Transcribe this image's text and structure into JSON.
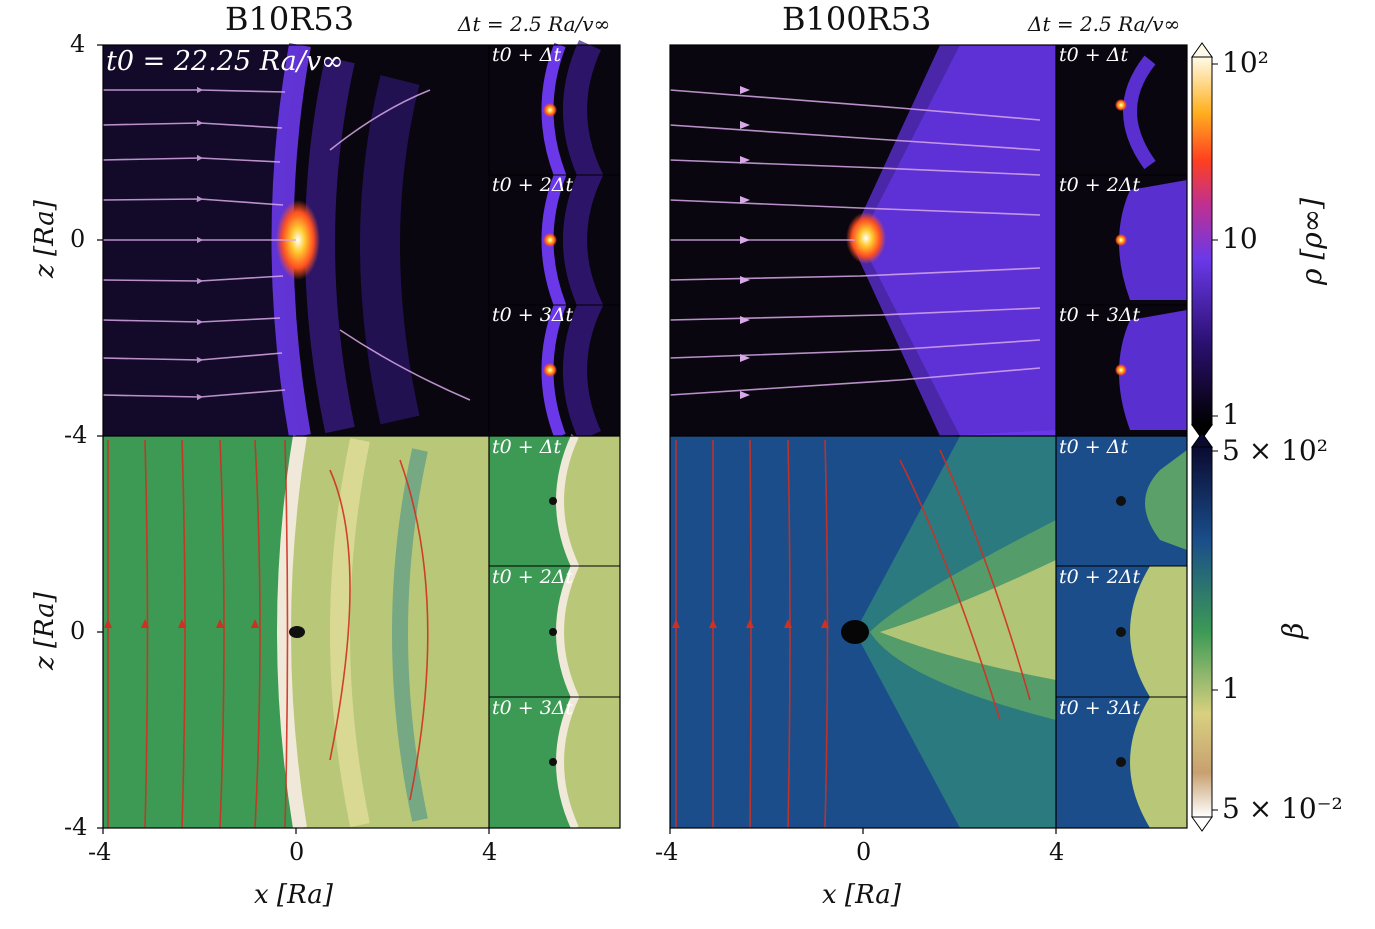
{
  "figure": {
    "panels": [
      {
        "title": "B10R53",
        "dt_label": "Δt = 2.5 Ra/v∞"
      },
      {
        "title": "B100R53",
        "dt_label": "Δt = 2.5 Ra/v∞"
      }
    ],
    "t0_label": "t0 = 22.25 Ra/v∞",
    "insets": [
      "t0 + Δt",
      "t0 + 2Δt",
      "t0 + 3Δt"
    ],
    "x_ticks": [
      "-4",
      "0",
      "4"
    ],
    "z_ticks": [
      "4",
      "0",
      "-4"
    ],
    "x_label": "x [Ra]",
    "z_label": "z [Ra]",
    "colorbars": {
      "density": {
        "label": "ρ [ρ∞]",
        "ticks": [
          "10²",
          "10",
          "1"
        ]
      },
      "beta": {
        "label": "β",
        "ticks": [
          "5 × 10²",
          "1",
          "5 × 10⁻²"
        ]
      }
    },
    "colors": {
      "density_low": "#0a0610",
      "density_mid": "#5a2fd0",
      "density_high": "#ff7a10",
      "beta_green": "#3c9a55",
      "beta_blue": "#1a4d8a",
      "stream_density": "#d8a8e8",
      "stream_beta": "#d03020"
    }
  }
}
